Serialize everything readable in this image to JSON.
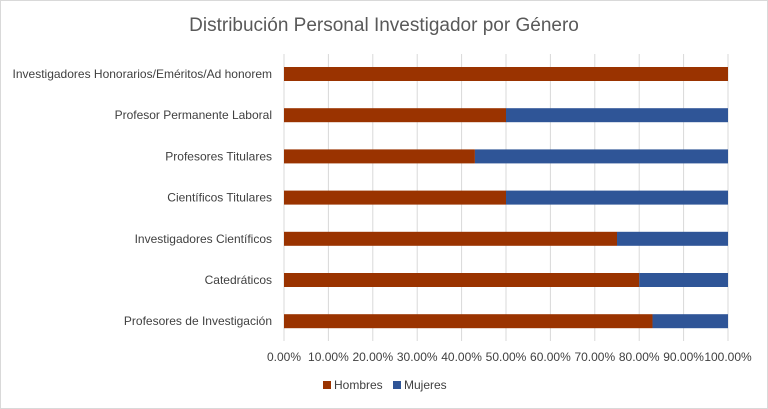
{
  "chart_data": {
    "type": "bar",
    "orientation": "horizontal",
    "stacked": true,
    "title": "Distribución Personal Investigador por Género",
    "categories": [
      "Investigadores Honorarios/Eméritos/Ad honorem",
      "Profesor Permanente Laboral",
      "Profesores Titulares",
      "Científicos Titulares",
      "Investigadores Científicos",
      "Catedráticos",
      "Profesores de Investigación"
    ],
    "series": [
      {
        "name": "Hombres",
        "color": "#9a3300",
        "values": [
          1.0,
          0.5,
          0.43,
          0.5,
          0.75,
          0.8,
          0.83
        ]
      },
      {
        "name": "Mujeres",
        "color": "#2f5597",
        "values": [
          0.0,
          0.5,
          0.57,
          0.5,
          0.25,
          0.2,
          0.17
        ]
      }
    ],
    "xlim": [
      0,
      1
    ],
    "x_ticks": [
      "0.00%",
      "10.00%",
      "20.00%",
      "30.00%",
      "40.00%",
      "50.00%",
      "60.00%",
      "70.00%",
      "80.00%",
      "90.00%",
      "100.00%"
    ],
    "grid": true,
    "legend_position": "bottom"
  }
}
